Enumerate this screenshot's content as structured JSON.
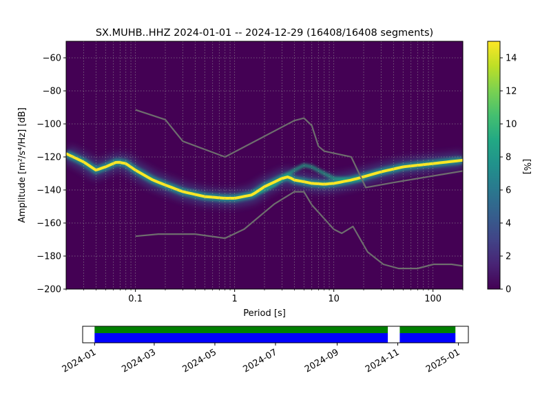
{
  "chart_data": [
    {
      "type": "heatmap",
      "title": "SX.MUHB..HHZ   2024-01-01 -- 2024-12-29  (16408/16408 segments)",
      "xlabel": "Period [s]",
      "ylabel": "Amplitude [m²/s⁴/Hz] [dB]",
      "xscale": "log",
      "xlim": [
        0.02,
        200
      ],
      "ylim": [
        -200,
        -50
      ],
      "xticks": [
        {
          "v": 0.1,
          "label": "0.1"
        },
        {
          "v": 1,
          "label": "1"
        },
        {
          "v": 10,
          "label": "10"
        },
        {
          "v": 100,
          "label": "100"
        }
      ],
      "yticks": [
        -60,
        -80,
        -100,
        -120,
        -140,
        -160,
        -180,
        -200
      ],
      "grid": true,
      "background_color": "#440154",
      "colorbar": {
        "label": "[%]",
        "min": 0,
        "max": 15,
        "ticks": [
          0,
          2,
          4,
          6,
          8,
          10,
          12,
          14
        ]
      },
      "mode_curve": {
        "x": [
          0.02,
          0.03,
          0.04,
          0.05,
          0.065,
          0.08,
          0.1,
          0.15,
          0.2,
          0.3,
          0.5,
          0.8,
          1,
          1.5,
          2,
          3,
          3.5,
          4,
          5,
          6,
          8,
          10,
          15,
          20,
          30,
          50,
          100,
          200
        ],
        "y": [
          -118,
          -123,
          -128,
          -126,
          -123,
          -124,
          -128,
          -134,
          -137,
          -141,
          -144,
          -145,
          -145,
          -143,
          -138,
          -133,
          -132,
          -134,
          -135,
          -136,
          -136.5,
          -136,
          -134,
          -132,
          -129,
          -126,
          -124,
          -122
        ]
      },
      "secondary_band": {
        "x": [
          1.5,
          2,
          2.5,
          3,
          4,
          5,
          6,
          8,
          10,
          15,
          20
        ],
        "y": [
          -142,
          -140,
          -137,
          -133,
          -128,
          -125,
          -126,
          -130,
          -133,
          -134,
          -133
        ]
      },
      "noise_models": [
        {
          "x": [
            0.1,
            0.2,
            0.3,
            0.8,
            4,
            5,
            6,
            7,
            8,
            15,
            21,
            40,
            100,
            200
          ],
          "y": [
            -91.5,
            -97.4,
            -110.5,
            -120,
            -98,
            -96.5,
            -101,
            -113.5,
            -116.5,
            -120,
            -138.5,
            -135.5,
            -131.5,
            -128.5
          ]
        },
        {
          "x": [
            0.1,
            0.17,
            0.4,
            0.8,
            1.25,
            2.5,
            4,
            5,
            6,
            10,
            12,
            15.6,
            21.9,
            31.6,
            45,
            70,
            101,
            154,
            200
          ],
          "y": [
            -168,
            -166.7,
            -166.7,
            -169.2,
            -163.7,
            -148.6,
            -141.1,
            -141.1,
            -149,
            -163.8,
            -166.2,
            -162.1,
            -177.5,
            -185,
            -187.5,
            -187.5,
            -185,
            -185,
            -186
          ]
        }
      ],
      "noise_model_color": "#6e6e6e"
    },
    {
      "type": "timeline",
      "xticks": [
        "2024-01",
        "2024-03",
        "2024-05",
        "2024-07",
        "2024-09",
        "2024-11",
        "2025-01"
      ],
      "range": [
        "2023-12-20",
        "2025-01-11"
      ],
      "segments": [
        {
          "start": "2024-01-01",
          "end": "2024-10-22"
        },
        {
          "start": "2024-11-03",
          "end": "2024-12-29"
        }
      ],
      "colors": {
        "top": "#008000",
        "bottom": "#0000ff"
      }
    }
  ]
}
